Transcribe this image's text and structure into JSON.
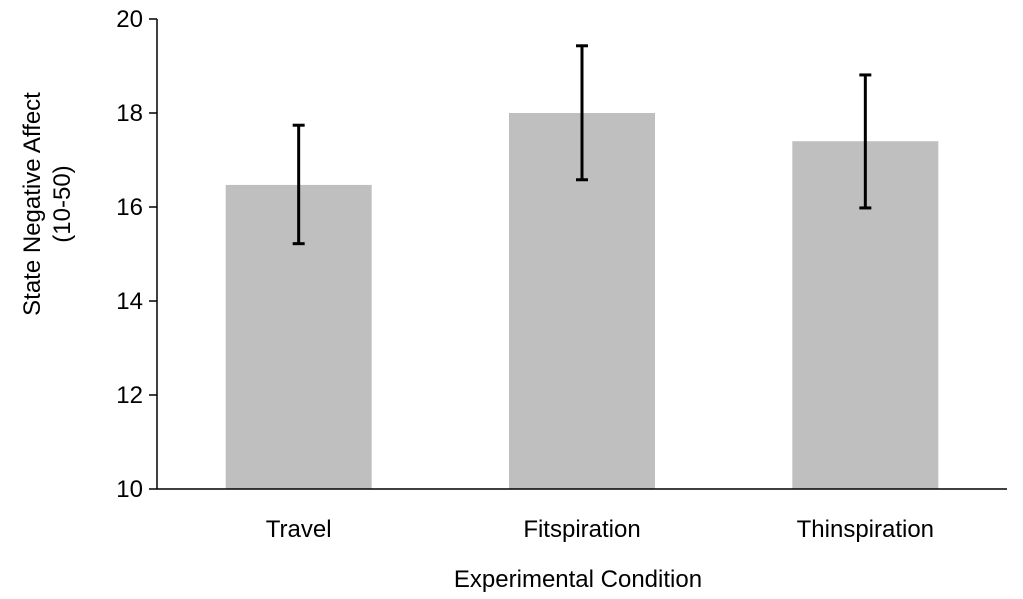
{
  "chart_data": {
    "type": "bar",
    "categories": [
      "Travel",
      "Fitspiration",
      "Thinspiration"
    ],
    "values": [
      16.47,
      18.0,
      17.4
    ],
    "error_bars": {
      "lower": [
        15.22,
        16.58,
        15.98
      ],
      "upper": [
        17.74,
        19.43,
        18.81
      ]
    },
    "xlabel": "Experimental Condition",
    "ylabel": [
      "State Negative Affect",
      "(10-50)"
    ],
    "ylim": [
      10,
      20
    ],
    "yticks": [
      10,
      12,
      14,
      16,
      18,
      20
    ],
    "grid": false,
    "legend": "none",
    "bar_color": "#bfbfbf",
    "error_bar_color": "#000000",
    "axis_color": "#000000"
  }
}
